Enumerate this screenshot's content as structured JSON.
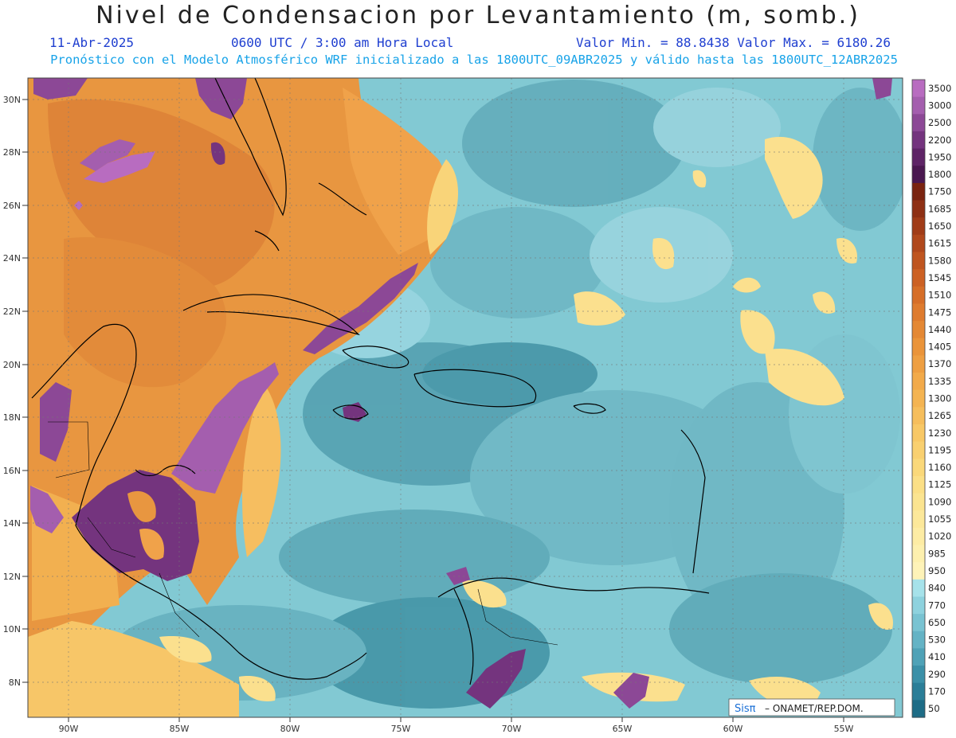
{
  "header": {
    "title": "Nivel de Condensacion por Levantamiento (m, somb.)",
    "date": "11-Abr-2025",
    "time": "0600 UTC / 3:00 am Hora Local",
    "minmax": "Valor Min. = 88.8438  Valor Max. = 6180.26",
    "subtitle": "Pronóstico con el Modelo Atmosférico WRF inicializado a las 1800UTC_09ABR2025 y válido hasta las  1800UTC_12ABR2025"
  },
  "axes": {
    "lat_labels": [
      "30N",
      "28N",
      "26N",
      "24N",
      "22N",
      "20N",
      "18N",
      "16N",
      "14N",
      "12N",
      "10N",
      "8N"
    ],
    "lon_labels": [
      "90W",
      "85W",
      "80W",
      "75W",
      "70W",
      "65W",
      "60W",
      "55W"
    ]
  },
  "colorbar": {
    "labels": [
      "3500",
      "3000",
      "2500",
      "2200",
      "1950",
      "1800",
      "1750",
      "1685",
      "1650",
      "1615",
      "1580",
      "1545",
      "1510",
      "1475",
      "1440",
      "1405",
      "1370",
      "1335",
      "1300",
      "1265",
      "1230",
      "1195",
      "1160",
      "1125",
      "1090",
      "1055",
      "1020",
      "985",
      "950",
      "840",
      "770",
      "650",
      "530",
      "410",
      "290",
      "170",
      "50"
    ],
    "colors": [
      "#b86cc0",
      "#a45eae",
      "#8c4896",
      "#74347e",
      "#5e2466",
      "#4a1850",
      "#7a2410",
      "#8e3014",
      "#a03c18",
      "#b0481c",
      "#bf5520",
      "#cc6124",
      "#d66e28",
      "#de7b2e",
      "#e48834",
      "#ea943a",
      "#ee9f42",
      "#f2aa4a",
      "#f4b452",
      "#f6be5c",
      "#f8c866",
      "#f9d070",
      "#fad87a",
      "#fbdf86",
      "#fbe490",
      "#fce89a",
      "#fdeca4",
      "#fdf0ae",
      "#fef3b8",
      "#a6e2ea",
      "#8ed2de",
      "#79c3d2",
      "#64b3c5",
      "#4fa2b7",
      "#3b90a8",
      "#2b7e98",
      "#1d6c86"
    ]
  },
  "credit": {
    "logo": "Sisπ",
    "text": "– ONAMET/REP.DOM."
  }
}
